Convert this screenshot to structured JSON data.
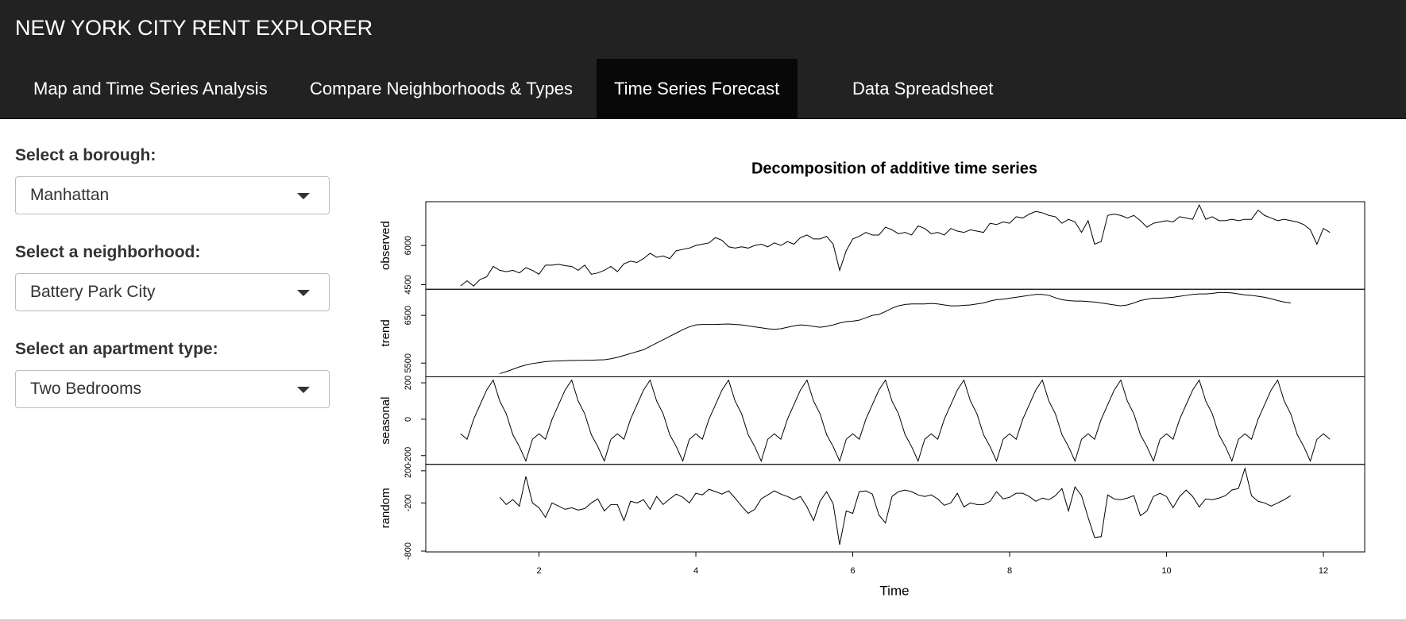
{
  "header": {
    "title": "NEW YORK CITY RENT EXPLORER",
    "tabs": [
      "Map and Time Series Analysis",
      "Compare Neighborhoods & Types",
      "Time Series Forecast",
      "Data Spreadsheet"
    ]
  },
  "sidebar": {
    "inputs": [
      {
        "label": "Select a borough:",
        "value": "Manhattan"
      },
      {
        "label": "Select a neighborhood:",
        "value": "Battery Park City"
      },
      {
        "label": "Select an apartment type:",
        "value": "Two Bedrooms"
      }
    ]
  },
  "chart_data": {
    "type": "decomposition",
    "title": "Decomposition of additive time series",
    "xlabel": "Time",
    "xlim": [
      0.557,
      12.526
    ],
    "xticks": [
      2,
      4,
      6,
      8,
      10,
      12
    ],
    "x": [
      1,
      1.083,
      1.167,
      1.25,
      1.333,
      1.417,
      1.5,
      1.583,
      1.667,
      1.75,
      1.833,
      1.917,
      2,
      2.083,
      2.167,
      2.25,
      2.333,
      2.417,
      2.5,
      2.583,
      2.667,
      2.75,
      2.833,
      2.917,
      3,
      3.083,
      3.167,
      3.25,
      3.333,
      3.417,
      3.5,
      3.583,
      3.667,
      3.75,
      3.833,
      3.917,
      4,
      4.083,
      4.167,
      4.25,
      4.333,
      4.417,
      4.5,
      4.583,
      4.667,
      4.75,
      4.833,
      4.917,
      5,
      5.083,
      5.167,
      5.25,
      5.333,
      5.417,
      5.5,
      5.583,
      5.667,
      5.75,
      5.833,
      5.917,
      6,
      6.083,
      6.167,
      6.25,
      6.333,
      6.417,
      6.5,
      6.583,
      6.667,
      6.75,
      6.833,
      6.917,
      7,
      7.083,
      7.167,
      7.25,
      7.333,
      7.417,
      7.5,
      7.583,
      7.667,
      7.75,
      7.833,
      7.917,
      8,
      8.083,
      8.167,
      8.25,
      8.333,
      8.417,
      8.5,
      8.583,
      8.667,
      8.75,
      8.833,
      8.917,
      9,
      9.083,
      9.167,
      9.25,
      9.333,
      9.417,
      9.5,
      9.583,
      9.667,
      9.75,
      9.833,
      9.917,
      10,
      10.083,
      10.167,
      10.25,
      10.333,
      10.417,
      10.5,
      10.583,
      10.667,
      10.75,
      10.833,
      10.917,
      11,
      11.083,
      11.167,
      11.25,
      11.333,
      11.417,
      11.5,
      11.583,
      11.667,
      11.75,
      11.833,
      11.917,
      12,
      12.083
    ],
    "panels": [
      {
        "name": "observed",
        "ylim": [
          4326,
          7674
        ],
        "yticks": [
          4500,
          6000
        ],
        "values": [
          4450,
          4650,
          4450,
          4700,
          4800,
          5200,
          5050,
          5000,
          5050,
          4950,
          5150,
          5050,
          4900,
          5250,
          5250,
          5280,
          5230,
          5200,
          5050,
          5250,
          4900,
          4950,
          5050,
          5200,
          5000,
          5300,
          5400,
          5350,
          5500,
          5700,
          5550,
          5600,
          5500,
          5800,
          5850,
          5900,
          6000,
          6050,
          6100,
          6300,
          6200,
          5950,
          5900,
          5950,
          5900,
          6000,
          6050,
          5950,
          6100,
          6000,
          6150,
          6050,
          6300,
          6400,
          6250,
          6250,
          6350,
          6050,
          5050,
          5800,
          6250,
          6350,
          6500,
          6400,
          6400,
          6700,
          6600,
          6450,
          6500,
          6400,
          6750,
          6650,
          6450,
          6500,
          6400,
          6650,
          6550,
          6500,
          6600,
          6550,
          6500,
          6850,
          6800,
          6900,
          6850,
          7100,
          7050,
          7200,
          7300,
          7250,
          7150,
          7100,
          6850,
          7000,
          6900,
          6500,
          6950,
          6050,
          6150,
          7150,
          7200,
          7150,
          7050,
          7150,
          6950,
          6700,
          6850,
          6900,
          6950,
          6900,
          7100,
          7050,
          7000,
          7550,
          7000,
          7100,
          6950,
          6950,
          7000,
          6950,
          7000,
          7000,
          7350,
          7150,
          7050,
          6950,
          7000,
          6950,
          6900,
          6800,
          6600,
          6050,
          6650,
          6500
        ]
      },
      {
        "name": "trend",
        "ylim": [
          5212,
          7048
        ],
        "yticks": [
          5500,
          6500
        ],
        "values": [
          null,
          null,
          null,
          null,
          null,
          null,
          5280,
          5320,
          5370,
          5420,
          5460,
          5490,
          5510,
          5530,
          5540,
          5545,
          5550,
          5555,
          5555,
          5560,
          5560,
          5565,
          5570,
          5590,
          5620,
          5660,
          5700,
          5740,
          5780,
          5850,
          5920,
          5990,
          6060,
          6130,
          6200,
          6260,
          6300,
          6310,
          6310,
          6310,
          6315,
          6320,
          6310,
          6300,
          6280,
          6260,
          6240,
          6220,
          6210,
          6220,
          6250,
          6280,
          6300,
          6290,
          6270,
          6250,
          6270,
          6300,
          6340,
          6370,
          6380,
          6400,
          6450,
          6500,
          6520,
          6580,
          6650,
          6700,
          6730,
          6740,
          6740,
          6740,
          6750,
          6740,
          6720,
          6700,
          6700,
          6710,
          6720,
          6740,
          6760,
          6800,
          6830,
          6840,
          6860,
          6880,
          6900,
          6920,
          6940,
          6940,
          6920,
          6870,
          6830,
          6810,
          6800,
          6800,
          6790,
          6780,
          6760,
          6740,
          6720,
          6700,
          6720,
          6760,
          6810,
          6840,
          6860,
          6860,
          6870,
          6880,
          6900,
          6920,
          6940,
          6950,
          6950,
          6960,
          6980,
          6980,
          6970,
          6950,
          6930,
          6920,
          6900,
          6880,
          6850,
          6810,
          6780,
          6760,
          null,
          null,
          null,
          null,
          null,
          null
        ]
      },
      {
        "name": "seasonal",
        "ylim": [
          -248,
          233
        ],
        "yticks": [
          -200,
          0,
          200
        ],
        "values": [
          -80,
          -110,
          0,
          80,
          160,
          215,
          100,
          30,
          -85,
          -150,
          -230,
          -110,
          -80,
          -110,
          0,
          80,
          160,
          215,
          100,
          30,
          -85,
          -150,
          -230,
          -110,
          -80,
          -110,
          0,
          80,
          160,
          215,
          100,
          30,
          -85,
          -150,
          -230,
          -110,
          -80,
          -110,
          0,
          80,
          160,
          215,
          100,
          30,
          -85,
          -150,
          -230,
          -110,
          -80,
          -110,
          0,
          80,
          160,
          215,
          100,
          30,
          -85,
          -150,
          -230,
          -110,
          -80,
          -110,
          0,
          80,
          160,
          215,
          100,
          30,
          -85,
          -150,
          -230,
          -110,
          -80,
          -110,
          0,
          80,
          160,
          215,
          100,
          30,
          -85,
          -150,
          -230,
          -110,
          -80,
          -110,
          0,
          80,
          160,
          215,
          100,
          30,
          -85,
          -150,
          -230,
          -110,
          -80,
          -110,
          0,
          80,
          160,
          215,
          100,
          30,
          -85,
          -150,
          -230,
          -110,
          -80,
          -110,
          0,
          80,
          160,
          215,
          100,
          30,
          -85,
          -150,
          -230,
          -110,
          -80,
          -110,
          0,
          80,
          160,
          215,
          100,
          30,
          -85,
          -150,
          -230,
          -110,
          -80,
          -110
        ]
      },
      {
        "name": "random",
        "ylim": [
          -810,
          280
        ],
        "yticks": [
          -800,
          -200,
          200
        ],
        "values": [
          null,
          null,
          null,
          null,
          null,
          null,
          -130,
          -220,
          -160,
          -240,
          130,
          -200,
          -260,
          -380,
          -200,
          -240,
          -280,
          -260,
          -290,
          -270,
          -200,
          -150,
          -300,
          -220,
          -220,
          -420,
          -180,
          -200,
          -160,
          -280,
          -120,
          -220,
          -150,
          -90,
          -130,
          -200,
          -80,
          -100,
          -30,
          -60,
          -90,
          -50,
          -140,
          -240,
          -330,
          -280,
          -150,
          -100,
          -50,
          -90,
          -120,
          -160,
          -120,
          -250,
          -420,
          -180,
          -60,
          -210,
          -720,
          -300,
          -330,
          -60,
          -50,
          -90,
          -350,
          -450,
          -120,
          -60,
          -40,
          -60,
          -100,
          -120,
          -100,
          -150,
          -230,
          -200,
          -80,
          -250,
          -200,
          -220,
          -220,
          -180,
          -60,
          -150,
          -130,
          -80,
          -80,
          -120,
          -180,
          -140,
          -160,
          -110,
          -20,
          -300,
          0,
          -110,
          -380,
          -630,
          -620,
          -100,
          -150,
          -160,
          -140,
          -110,
          -360,
          -300,
          -120,
          -80,
          -120,
          -260,
          -120,
          -40,
          -120,
          -250,
          -150,
          -160,
          -140,
          -110,
          -40,
          -20,
          230,
          -110,
          -180,
          -200,
          -240,
          -200,
          -160,
          -110,
          null,
          null,
          null,
          null,
          null,
          null
        ]
      }
    ]
  }
}
